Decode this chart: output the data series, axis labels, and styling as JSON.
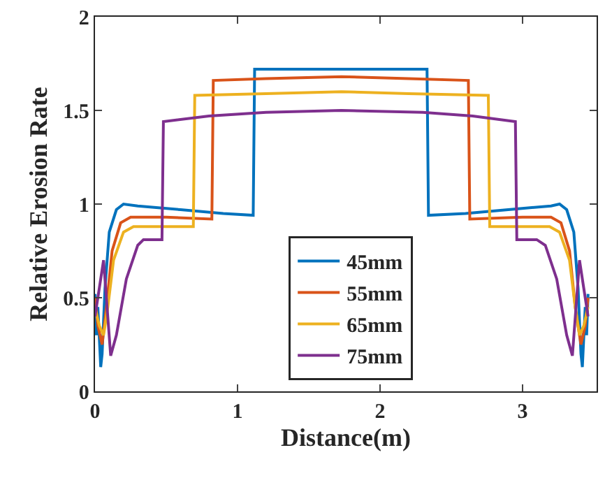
{
  "chart_data": {
    "type": "line",
    "xlabel": "Distance(m)",
    "ylabel": "Relative Erosion Rate",
    "xlim": [
      0,
      3.52
    ],
    "ylim": [
      0,
      2
    ],
    "xticks": [
      0,
      1,
      2,
      3
    ],
    "yticks": [
      0,
      0.5,
      1,
      1.5,
      2
    ],
    "legend": "bottom",
    "line_style": "solid",
    "marker": "none",
    "series": [
      {
        "name": "45mm",
        "color": "#0072bd",
        "x": [
          0,
          0.01,
          0.02,
          0.04,
          0.05,
          0.07,
          0.1,
          0.15,
          0.2,
          0.3,
          0.6,
          0.9,
          1.11,
          1.12,
          1.4,
          1.73,
          2.1,
          2.33,
          2.34,
          2.6,
          2.9,
          3.2,
          3.26,
          3.31,
          3.36,
          3.39,
          3.41,
          3.42,
          3.44,
          3.45,
          3.46
        ],
        "values": [
          0.52,
          0.3,
          0.45,
          0.13,
          0.2,
          0.55,
          0.85,
          0.97,
          1.0,
          0.99,
          0.97,
          0.95,
          0.94,
          1.72,
          1.72,
          1.72,
          1.72,
          1.72,
          0.94,
          0.95,
          0.97,
          0.99,
          1.0,
          0.97,
          0.85,
          0.55,
          0.2,
          0.13,
          0.45,
          0.3,
          0.52
        ]
      },
      {
        "name": "55mm",
        "color": "#d95319",
        "x": [
          0,
          0.02,
          0.05,
          0.08,
          0.12,
          0.18,
          0.25,
          0.5,
          0.82,
          0.83,
          1.2,
          1.73,
          2.2,
          2.62,
          2.63,
          3.0,
          3.2,
          3.27,
          3.33,
          3.37,
          3.41,
          3.44,
          3.46
        ],
        "values": [
          0.5,
          0.35,
          0.25,
          0.45,
          0.75,
          0.9,
          0.93,
          0.93,
          0.92,
          1.66,
          1.67,
          1.68,
          1.67,
          1.66,
          0.92,
          0.93,
          0.93,
          0.9,
          0.75,
          0.45,
          0.25,
          0.35,
          0.5
        ]
      },
      {
        "name": "65mm",
        "color": "#edb120",
        "x": [
          0,
          0.03,
          0.06,
          0.09,
          0.13,
          0.2,
          0.27,
          0.5,
          0.69,
          0.7,
          1.2,
          1.73,
          2.2,
          2.76,
          2.77,
          3.0,
          3.19,
          3.26,
          3.33,
          3.37,
          3.4,
          3.43,
          3.46
        ],
        "values": [
          0.45,
          0.35,
          0.3,
          0.45,
          0.7,
          0.85,
          0.88,
          0.88,
          0.88,
          1.58,
          1.59,
          1.6,
          1.59,
          1.58,
          0.88,
          0.88,
          0.88,
          0.85,
          0.7,
          0.45,
          0.3,
          0.35,
          0.45
        ]
      },
      {
        "name": "75mm",
        "color": "#7e2f8e",
        "x": [
          0,
          0.03,
          0.06,
          0.11,
          0.15,
          0.22,
          0.3,
          0.34,
          0.47,
          0.48,
          0.8,
          1.2,
          1.73,
          2.3,
          2.65,
          2.95,
          2.96,
          3.1,
          3.16,
          3.24,
          3.31,
          3.35,
          3.4,
          3.43,
          3.46
        ],
        "values": [
          0.4,
          0.55,
          0.7,
          0.19,
          0.3,
          0.6,
          0.78,
          0.81,
          0.81,
          1.44,
          1.47,
          1.49,
          1.5,
          1.49,
          1.47,
          1.44,
          0.81,
          0.81,
          0.78,
          0.6,
          0.3,
          0.19,
          0.7,
          0.55,
          0.4
        ]
      }
    ]
  }
}
